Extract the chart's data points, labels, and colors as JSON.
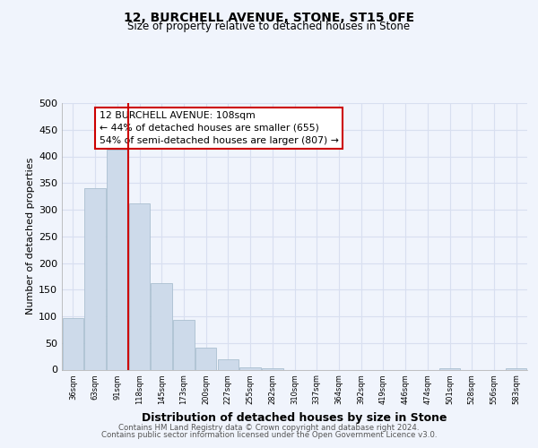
{
  "title": "12, BURCHELL AVENUE, STONE, ST15 0FE",
  "subtitle": "Size of property relative to detached houses in Stone",
  "xlabel": "Distribution of detached houses by size in Stone",
  "ylabel": "Number of detached properties",
  "bar_labels": [
    "36sqm",
    "63sqm",
    "91sqm",
    "118sqm",
    "145sqm",
    "173sqm",
    "200sqm",
    "227sqm",
    "255sqm",
    "282sqm",
    "310sqm",
    "337sqm",
    "364sqm",
    "392sqm",
    "419sqm",
    "446sqm",
    "474sqm",
    "501sqm",
    "528sqm",
    "556sqm",
    "583sqm"
  ],
  "bar_values": [
    97,
    341,
    412,
    311,
    163,
    94,
    42,
    19,
    5,
    2,
    0,
    0,
    0,
    0,
    0,
    0,
    0,
    2,
    0,
    0,
    2
  ],
  "bar_color": "#cddaea",
  "bar_edge_color": "#aabfd0",
  "property_line_color": "#cc0000",
  "annotation_title": "12 BURCHELL AVENUE: 108sqm",
  "annotation_line1": "← 44% of detached houses are smaller (655)",
  "annotation_line2": "54% of semi-detached houses are larger (807) →",
  "annotation_box_color": "#ffffff",
  "annotation_box_edge_color": "#cc0000",
  "ylim": [
    0,
    500
  ],
  "yticks": [
    0,
    50,
    100,
    150,
    200,
    250,
    300,
    350,
    400,
    450,
    500
  ],
  "footer_line1": "Contains HM Land Registry data © Crown copyright and database right 2024.",
  "footer_line2": "Contains public sector information licensed under the Open Government Licence v3.0.",
  "bg_color": "#f0f4fc",
  "grid_color": "#d8dff0"
}
